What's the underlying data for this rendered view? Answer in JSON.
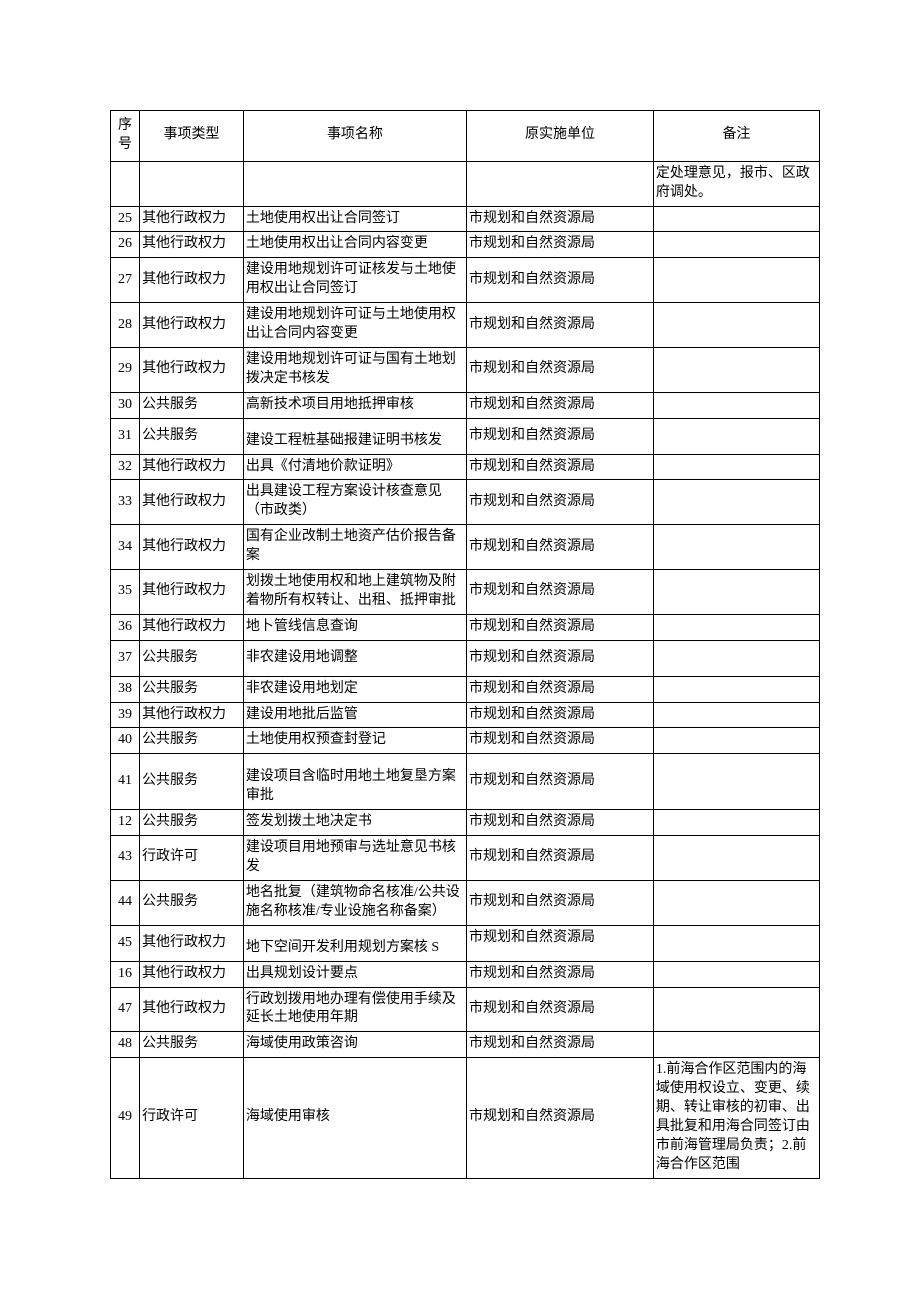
{
  "header": {
    "seq": "序号",
    "type": "事项类型",
    "name": "事项名称",
    "unit": "原实施单位",
    "note": "备注"
  },
  "carryover_note": "定处理意见，报市、区政府调处。",
  "rows": [
    {
      "seq": "25",
      "type": "其他行政权力",
      "name": "土地使用权出让合同签订",
      "unit": "市规划和自然资源局",
      "note": ""
    },
    {
      "seq": "26",
      "type": "其他行政权力",
      "name": "土地使用权出让合同内容变更",
      "unit": "市规划和自然资源局",
      "note": ""
    },
    {
      "seq": "27",
      "type": "其他行政权力",
      "name": "建设用地规划许可证核发与土地使用权出让合同签订",
      "unit": "市规划和自然资源局",
      "note": ""
    },
    {
      "seq": "28",
      "type": "其他行政权力",
      "name": "建设用地规划许可证与土地使用权出让合同内容变更",
      "unit": "市规划和自然资源局",
      "note": ""
    },
    {
      "seq": "29",
      "type": "其他行政权力",
      "name": "建设用地规划许可证与国有土地划拨决定书核发",
      "unit": "市规划和自然资源局",
      "note": ""
    },
    {
      "seq": "30",
      "type": "公共服务",
      "name": "高新技术项目用地抵押审核",
      "unit": "市规划和自然资源局",
      "note": ""
    },
    {
      "seq": "31",
      "type": "公共服务",
      "name": "建设工程桩基础报建证明书核发",
      "unit": "市规划和自然资源局",
      "note": "",
      "tall": true,
      "valign": "bottom"
    },
    {
      "seq": "32",
      "type": "其他行政权力",
      "name": "出具《付清地价款证明》",
      "unit": "市规划和自然资源局",
      "note": ""
    },
    {
      "seq": "33",
      "type": "其他行政权力",
      "name": "出具建设工程方案设计核查意见（市政类）",
      "unit": "市规划和自然资源局",
      "note": ""
    },
    {
      "seq": "34",
      "type": "其他行政权力",
      "name": "国有企业改制土地资产估价报告备案",
      "unit": "市规划和自然资源局",
      "note": ""
    },
    {
      "seq": "35",
      "type": "其他行政权力",
      "name": "划拨土地使用权和地上建筑物及附着物所有权转让、出租、抵押审批",
      "unit": "市规划和自然资源局",
      "note": ""
    },
    {
      "seq": "36",
      "type": "其他行政权力",
      "name": "地卜管线信息查询",
      "unit": "市规划和自然资源局",
      "note": ""
    },
    {
      "seq": "37",
      "type": "公共服务",
      "name": "非农建设用地调整",
      "unit": "市规划和自然资源局",
      "note": "",
      "tall": true
    },
    {
      "seq": "38",
      "type": "公共服务",
      "name": "非农建设用地划定",
      "unit": "市规划和自然资源局",
      "note": ""
    },
    {
      "seq": "39",
      "type": "其他行政权力",
      "name": "建设用地批后监管",
      "unit": "市规划和自然资源局",
      "note": ""
    },
    {
      "seq": "40",
      "type": "公共服务",
      "name": "土地使用权预查封登记",
      "unit": "市规划和自然资源局",
      "note": ""
    },
    {
      "seq": "41",
      "type": "公共服务",
      "name": "建设项目含临时用地土地复垦方案审批",
      "unit": "市规划和自然资源局",
      "note": "",
      "tall": true,
      "padtop": true
    },
    {
      "seq": "12",
      "type": "公共服务",
      "name": "签发划拨土地决定书",
      "unit": "市规划和自然资源局",
      "note": ""
    },
    {
      "seq": "43",
      "type": "行政许可",
      "name": "建设项目用地预审与选址意见书核发",
      "unit": "市规划和自然资源局",
      "note": ""
    },
    {
      "seq": "44",
      "type": "公共服务",
      "name": "地名批复（建筑物命名核准/公共设施名称核准/专业设施名称备案）",
      "unit": "市规划和自然资源局",
      "note": ""
    },
    {
      "seq": "45",
      "type": "其他行政权力",
      "name": "地下空间开发利用规划方案核 S",
      "unit": "市规划和自然资源局",
      "note": "",
      "tall": true,
      "valign": "bottom",
      "unitvalign": "top"
    },
    {
      "seq": "16",
      "type": "其他行政权力",
      "name": "出具规划设计要点",
      "unit": "市规划和自然资源局",
      "note": ""
    },
    {
      "seq": "47",
      "type": "其他行政权力",
      "name": "行政划拨用地办理有偿使用手续及延长土地使用年期",
      "unit": "市规划和自然资源局",
      "note": ""
    },
    {
      "seq": "48",
      "type": "公共服务",
      "name": "海域使用政策咨询",
      "unit": "市规划和自然资源局",
      "note": ""
    },
    {
      "seq": "49",
      "type": "行政许可",
      "name": "海域使用审核",
      "unit": "市规划和自然资源局",
      "note": "1.前海合作区范围内的海域使用权设立、变更、续期、转让审核的初审、出具批复和用海合同签订由市前海管理局负责；2.前海合作区范围"
    }
  ]
}
